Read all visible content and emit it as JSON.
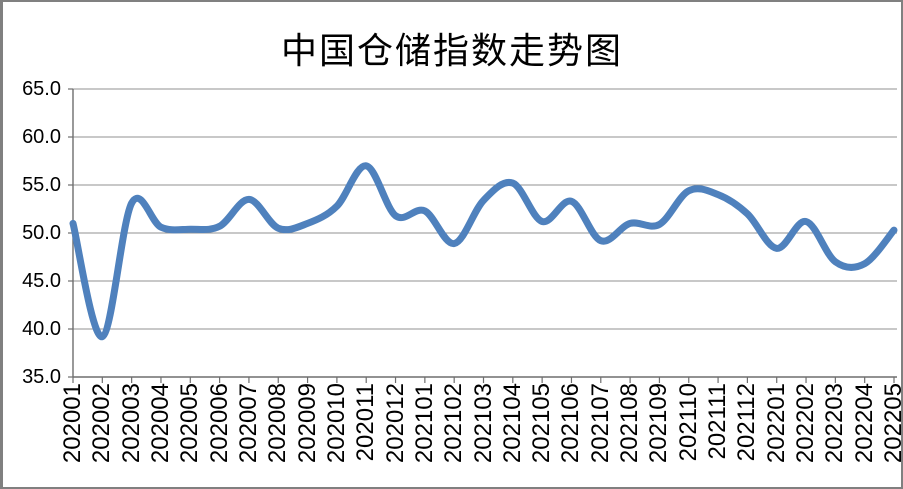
{
  "chart_data": {
    "type": "line",
    "title": "中国仓储指数走势图",
    "smooth": true,
    "grid": true,
    "legend": "none",
    "line_color": "#4F81BD",
    "gridline_color": "#909090",
    "axis_color": "#6e6e6e",
    "frame_border_color": "#808080",
    "ylim": [
      35.0,
      65.0
    ],
    "ytick_step": 5,
    "ytick_labels": [
      "65.0",
      "60.0",
      "55.0",
      "50.0",
      "45.0",
      "40.0",
      "35.0"
    ],
    "categories": [
      "202001",
      "202002",
      "202003",
      "202004",
      "202005",
      "202006",
      "202007",
      "202008",
      "202009",
      "202010",
      "202011",
      "202012",
      "202101",
      "202102",
      "202103",
      "202104",
      "202105",
      "202106",
      "202107",
      "202108",
      "202109",
      "202110",
      "202111",
      "202112",
      "202201",
      "202202",
      "202203",
      "202204",
      "202205"
    ],
    "values": [
      51.0,
      39.2,
      53.1,
      50.6,
      50.4,
      50.7,
      53.5,
      50.5,
      51.0,
      52.8,
      57.0,
      51.8,
      52.3,
      48.9,
      53.4,
      55.2,
      51.2,
      53.3,
      49.2,
      51.0,
      50.9,
      54.4,
      54.0,
      52.0,
      48.4,
      51.2,
      47.0,
      46.8,
      50.3
    ]
  }
}
